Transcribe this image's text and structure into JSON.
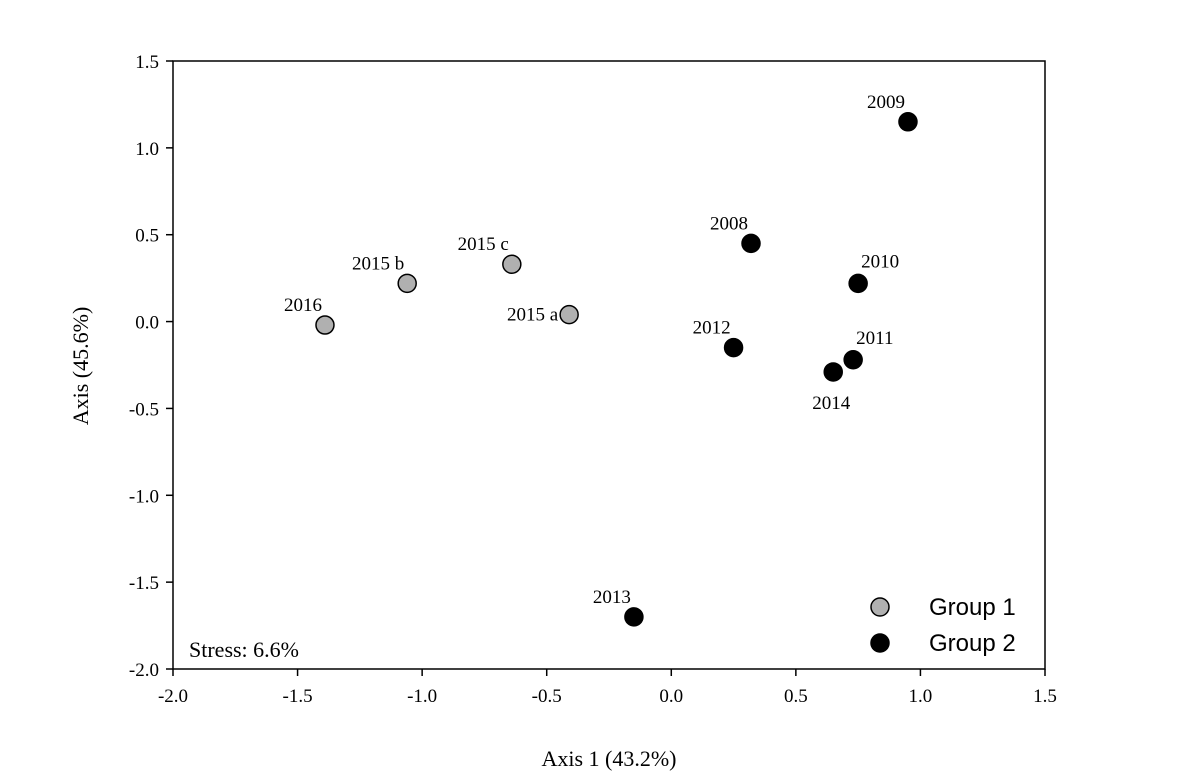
{
  "chart_data": {
    "type": "scatter",
    "title": "",
    "xlabel": "Axis 1 (43.2%)",
    "ylabel": "Axis (45.6%)",
    "xlim": [
      -2.0,
      1.5
    ],
    "ylim": [
      -2.0,
      1.5
    ],
    "xticks": [
      -2.0,
      -1.5,
      -1.0,
      -0.5,
      0.0,
      0.5,
      1.0,
      1.5
    ],
    "xtick_labels": [
      "-2.0",
      "-1.5",
      "-1.0",
      "-0.5",
      "0.0",
      "0.5",
      "1.0",
      "1.5"
    ],
    "yticks": [
      -2.0,
      -1.5,
      -1.0,
      -0.5,
      0.0,
      0.5,
      1.0,
      1.5
    ],
    "ytick_labels": [
      "-2.0",
      "-1.5",
      "-1.0",
      "-0.5",
      "0.0",
      "0.5",
      "1.0",
      "1.5"
    ],
    "grid": false,
    "legend_position": "bottom-right",
    "annotation": "Stress: 6.6%",
    "series": [
      {
        "name": "Group 1",
        "color": "#b0b0b0",
        "points": [
          {
            "label": "2016",
            "x": -1.39,
            "y": -0.02,
            "label_pos": "upper-left"
          },
          {
            "label": "2015 b",
            "x": -1.06,
            "y": 0.22,
            "label_pos": "upper-left"
          },
          {
            "label": "2015 c",
            "x": -0.64,
            "y": 0.33,
            "label_pos": "upper-left"
          },
          {
            "label": "2015 a",
            "x": -0.41,
            "y": 0.04,
            "label_pos": "left"
          }
        ]
      },
      {
        "name": "Group 2",
        "color": "#000000",
        "points": [
          {
            "label": "2009",
            "x": 0.95,
            "y": 1.15,
            "label_pos": "upper-left"
          },
          {
            "label": "2008",
            "x": 0.32,
            "y": 0.45,
            "label_pos": "upper-left"
          },
          {
            "label": "2010",
            "x": 0.75,
            "y": 0.22,
            "label_pos": "upper-right"
          },
          {
            "label": "2012",
            "x": 0.25,
            "y": -0.15,
            "label_pos": "upper-left"
          },
          {
            "label": "2011",
            "x": 0.73,
            "y": -0.22,
            "label_pos": "upper-right"
          },
          {
            "label": "2014",
            "x": 0.65,
            "y": -0.29,
            "label_pos": "lower"
          },
          {
            "label": "2013",
            "x": -0.15,
            "y": -1.7,
            "label_pos": "upper-left"
          }
        ]
      }
    ]
  }
}
